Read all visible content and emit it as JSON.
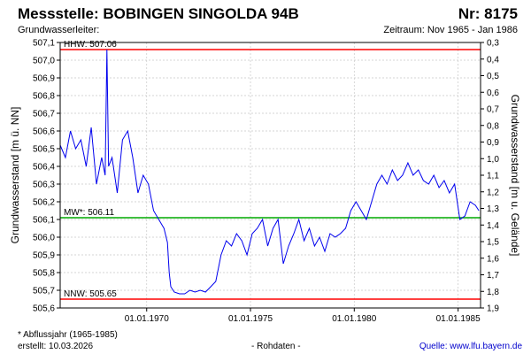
{
  "header": {
    "station_title": "Messstelle: BOBINGEN SINGOLDA 94B",
    "number_label": "Nr: 8175",
    "aquifer_label": "Grundwasserleiter:",
    "period_label": "Zeitraum: Nov 1965 - Jan 1986"
  },
  "footer": {
    "note": "* Abflussjahr (1965-1985)",
    "created": "erstellt:  10.03.2026",
    "data_type": "- Rohdaten -",
    "source": "Quelle: www.lfu.bayern.de"
  },
  "colors": {
    "series": "#0000ee",
    "extreme_lines": "#ff0000",
    "mean_line": "#00aa00",
    "grid": "#c8c8c8",
    "frame": "#000000"
  },
  "chart_data": {
    "type": "line",
    "title": "Messstelle: BOBINGEN SINGOLDA 94B",
    "ylabel": "Grundwasserstand [m ü. NN]",
    "y2label": "Grundwasserstand [m u. Gelände]",
    "xlim": [
      "1965-11-01",
      "1986-01-31"
    ],
    "ylim": [
      505.6,
      507.1
    ],
    "y2lim": [
      1.9,
      0.3
    ],
    "grid": true,
    "x_ticks": [
      "01.01.1970",
      "01.01.1975",
      "01.01.1980",
      "01.01.1985"
    ],
    "y_ticks": [
      "505,6",
      "505,7",
      "505,8",
      "505,9",
      "506,0",
      "506,1",
      "506,2",
      "506,3",
      "506,4",
      "506,5",
      "506,6",
      "506,7",
      "506,8",
      "506,9",
      "507,0",
      "507,1"
    ],
    "y2_ticks": [
      "1,9",
      "1,8",
      "1,7",
      "1,6",
      "1,5",
      "1,4",
      "1,3",
      "1,2",
      "1,1",
      "1,0",
      "0,9",
      "0,8",
      "0,7",
      "0,6",
      "0,5",
      "0,4",
      "0,3"
    ],
    "reference_lines": [
      {
        "label": "HHW: 507.06",
        "value": 507.06,
        "color": "#ff0000"
      },
      {
        "label": "MW*: 506.11",
        "value": 506.11,
        "color": "#00aa00"
      },
      {
        "label": "NNW: 505.65",
        "value": 505.65,
        "color": "#ff0000"
      }
    ],
    "series": [
      {
        "color": "#0000ee",
        "x": [
          "1965-11",
          "1966-02",
          "1966-05",
          "1966-08",
          "1966-11",
          "1967-02",
          "1967-05",
          "1967-08",
          "1967-11",
          "1968-01",
          "1968-02",
          "1968-03",
          "1968-05",
          "1968-08",
          "1968-11",
          "1969-02",
          "1969-05",
          "1969-08",
          "1969-11",
          "1970-02",
          "1970-05",
          "1970-08",
          "1970-11",
          "1971-01",
          "1971-02",
          "1971-03",
          "1971-05",
          "1971-08",
          "1971-11",
          "1972-02",
          "1972-05",
          "1972-08",
          "1972-11",
          "1973-02",
          "1973-05",
          "1973-08",
          "1973-11",
          "1974-02",
          "1974-05",
          "1974-08",
          "1974-11",
          "1975-02",
          "1975-05",
          "1975-08",
          "1975-11",
          "1976-02",
          "1976-05",
          "1976-08",
          "1976-11",
          "1977-02",
          "1977-05",
          "1977-08",
          "1977-11",
          "1978-02",
          "1978-05",
          "1978-08",
          "1978-11",
          "1979-02",
          "1979-05",
          "1979-08",
          "1979-11",
          "1980-02",
          "1980-05",
          "1980-08",
          "1980-11",
          "1981-02",
          "1981-05",
          "1981-08",
          "1981-11",
          "1982-02",
          "1982-05",
          "1982-08",
          "1982-11",
          "1983-02",
          "1983-05",
          "1983-08",
          "1983-11",
          "1984-02",
          "1984-05",
          "1984-08",
          "1984-11",
          "1985-02",
          "1985-05",
          "1985-08",
          "1985-11",
          "1986-01"
        ],
        "y": [
          506.52,
          506.45,
          506.6,
          506.5,
          506.55,
          506.4,
          506.62,
          506.3,
          506.45,
          506.35,
          507.06,
          506.4,
          506.45,
          506.25,
          506.55,
          506.6,
          506.45,
          506.25,
          506.35,
          506.3,
          506.15,
          506.1,
          506.05,
          505.97,
          505.8,
          505.72,
          505.69,
          505.68,
          505.68,
          505.7,
          505.69,
          505.7,
          505.69,
          505.72,
          505.75,
          505.9,
          505.98,
          505.95,
          506.02,
          505.98,
          505.9,
          506.02,
          506.05,
          506.1,
          505.95,
          506.05,
          506.1,
          505.85,
          505.95,
          506.02,
          506.1,
          505.98,
          506.05,
          505.95,
          506.0,
          505.92,
          506.02,
          506.0,
          506.02,
          506.05,
          506.15,
          506.2,
          506.15,
          506.1,
          506.2,
          506.3,
          506.35,
          506.3,
          506.38,
          506.32,
          506.35,
          506.42,
          506.35,
          506.38,
          506.32,
          506.3,
          506.35,
          506.28,
          506.32,
          506.25,
          506.3,
          506.1,
          506.12,
          506.2,
          506.18,
          506.15
        ]
      }
    ]
  }
}
